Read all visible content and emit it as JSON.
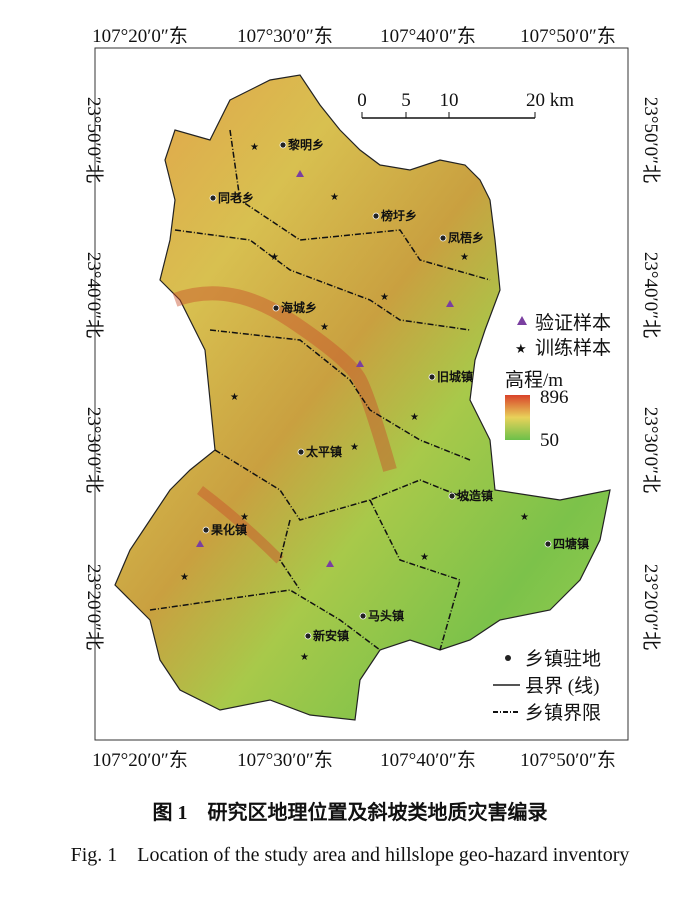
{
  "map": {
    "top_labels": [
      "107°20′0″东",
      "107°30′0″东",
      "107°40′0″东",
      "107°50′0″东"
    ],
    "bottom_labels": [
      "107°20′0″东",
      "107°30′0″东",
      "107°40′0″东",
      "107°50′0″东"
    ],
    "left_labels": [
      "23°50′0″北",
      "23°40′0″北",
      "23°30′0″北",
      "23°20′0″北"
    ],
    "right_labels": [
      "23°50′0″北",
      "23°40′0″北",
      "23°30′0″北",
      "23°20′0″北"
    ],
    "scale_bar": [
      0,
      5,
      10,
      "20 km"
    ],
    "towns": [
      "黎明乡",
      "同老乡",
      "榜圩乡",
      "凤梧乡",
      "海城乡",
      "旧城镇",
      "太平镇",
      "坡造镇",
      "果化镇",
      "四塘镇",
      "马头镇",
      "新安镇"
    ],
    "legend": {
      "validation": "验证样本",
      "training": "训练样本",
      "elevation_title": "高程/m",
      "elevation_max": 896,
      "elevation_min": 50,
      "town_seat": "乡镇驻地",
      "county_boundary": "县界 (线)",
      "town_boundary": "乡镇界限"
    }
  },
  "caption": {
    "zh": "图 1　研究区地理位置及斜坡类地质灾害编录",
    "en": "Fig. 1　Location of the study area and hillslope geo-hazard inventory"
  }
}
